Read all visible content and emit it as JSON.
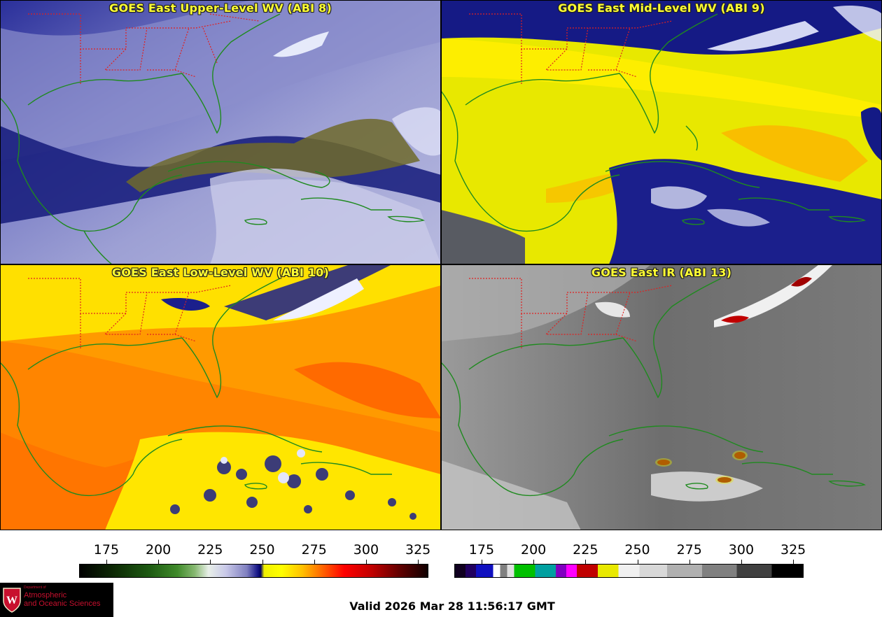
{
  "panels": [
    {
      "id": "p1",
      "title": "GOES East Upper-Level WV (ABI 8)",
      "scheme": "upper"
    },
    {
      "id": "p2",
      "title": "GOES East Mid-Level WV (ABI 9)",
      "scheme": "mid"
    },
    {
      "id": "p3",
      "title": "GOES East Low-Level WV (ABI 10)",
      "scheme": "low"
    },
    {
      "id": "p4",
      "title": "GOES East IR (ABI 13)",
      "scheme": "ir"
    }
  ],
  "colorbars": [
    {
      "name": "wv-colorbar",
      "ticks": [
        "175",
        "200",
        "225",
        "250",
        "275",
        "300",
        "325"
      ]
    },
    {
      "name": "ir-colorbar",
      "ticks": [
        "175",
        "200",
        "225",
        "250",
        "275",
        "300",
        "325"
      ]
    }
  ],
  "valid_time": "Valid 2026 Mar 28 11:56:17 GMT",
  "logo": {
    "small": "Department of",
    "line1": "Atmospheric",
    "line2": "and Oceanic Sciences",
    "letter": "W"
  },
  "colors": {
    "state_borders": "#e02020",
    "coastline": "#1f8a1f",
    "title": "#ffff33"
  }
}
